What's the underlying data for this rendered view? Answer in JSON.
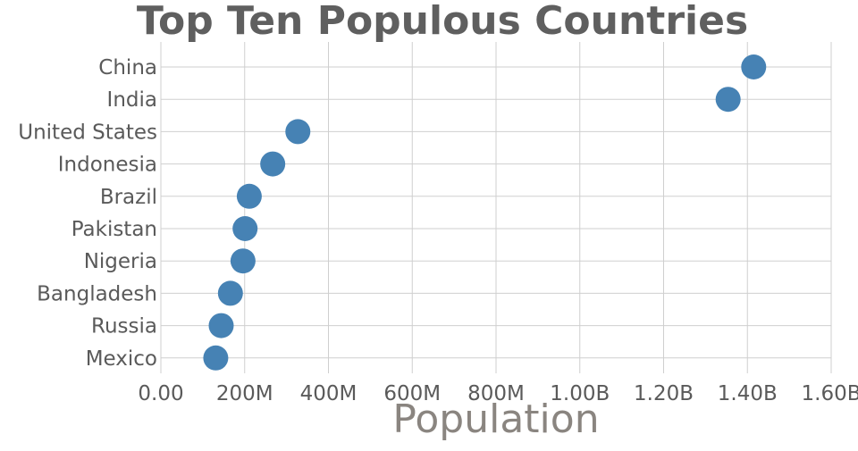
{
  "chart_data": {
    "type": "scatter",
    "title": "Top Ten Populous Countries",
    "xlabel": "Population",
    "ylabel": "",
    "xlim": [
      0,
      1600000000
    ],
    "x_ticks": [
      "0.00",
      "200M",
      "400M",
      "600M",
      "800M",
      "1.00B",
      "1.20B",
      "1.40B",
      "1.60B"
    ],
    "grid": true,
    "marker_color": "#4682b4",
    "categories": [
      "China",
      "India",
      "United States",
      "Indonesia",
      "Brazil",
      "Pakistan",
      "Nigeria",
      "Bangladesh",
      "Russia",
      "Mexico"
    ],
    "values": [
      1415000000,
      1354000000,
      327000000,
      267000000,
      211000000,
      201000000,
      196000000,
      166000000,
      144000000,
      131000000
    ]
  }
}
